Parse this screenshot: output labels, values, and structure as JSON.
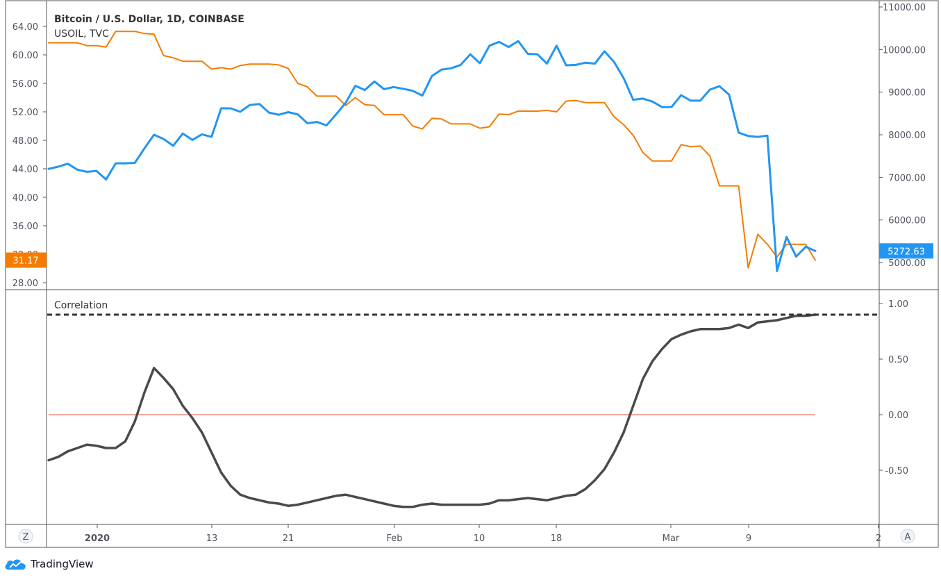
{
  "colors": {
    "btc": "#2196f3",
    "oil": "#f57c00",
    "correlation": "#4a4a4a",
    "zero_line": "#f28b82",
    "ref_line": "#333333",
    "grid_border": "#555555",
    "text": "#50535e"
  },
  "icons": {
    "brand": "tradingview-cloud-icon"
  },
  "brand": "TradingView",
  "corner_buttons": {
    "left": "Z",
    "right": "A"
  },
  "chart_data": [
    {
      "type": "line",
      "title": "Bitcoin / U.S. Dollar, 1D, COINBASE",
      "x_ticks": [
        "2020",
        "13",
        "21",
        "Feb",
        "10",
        "18",
        "Mar",
        "9",
        "2"
      ],
      "series": [
        {
          "name": "Bitcoin / U.S. Dollar, 1D, COINBASE",
          "axis": "right",
          "last_value_label": "5272.63",
          "values": [
            7200,
            7250,
            7320,
            7180,
            7130,
            7150,
            6950,
            7330,
            7330,
            7340,
            7680,
            8000,
            7900,
            7740,
            8030,
            7880,
            8010,
            7950,
            8620,
            8620,
            8540,
            8700,
            8720,
            8520,
            8470,
            8530,
            8480,
            8270,
            8300,
            8220,
            8480,
            8750,
            9150,
            9050,
            9250,
            9070,
            9120,
            9080,
            9030,
            8920,
            9380,
            9530,
            9560,
            9640,
            9890,
            9680,
            10090,
            10180,
            10060,
            10200,
            9900,
            9890,
            9670,
            10090,
            9630,
            9640,
            9690,
            9670,
            9960,
            9710,
            9330,
            8820,
            8850,
            8780,
            8650,
            8650,
            8930,
            8800,
            8800,
            9060,
            9140,
            8940,
            8050,
            7970,
            7950,
            7980,
            4800,
            5600,
            5140,
            5370,
            5272.63
          ]
        },
        {
          "name": "USOIL, TVC",
          "axis": "left",
          "last_value_label": "31.17",
          "values": [
            61.7,
            61.7,
            61.7,
            61.7,
            61.3,
            61.3,
            61.1,
            63.3,
            63.3,
            63.3,
            63.0,
            62.9,
            59.9,
            59.6,
            59.1,
            59.1,
            59.1,
            58.0,
            58.2,
            58.0,
            58.5,
            58.7,
            58.7,
            58.7,
            58.6,
            58.1,
            56.0,
            55.5,
            54.2,
            54.2,
            54.2,
            52.9,
            54.0,
            53.0,
            52.9,
            51.6,
            51.6,
            51.6,
            50.0,
            49.6,
            51.1,
            51.0,
            50.3,
            50.3,
            50.3,
            49.7,
            49.9,
            51.7,
            51.6,
            52.1,
            52.1,
            52.1,
            52.2,
            52.0,
            53.5,
            53.6,
            53.3,
            53.3,
            53.3,
            51.3,
            50.2,
            48.7,
            46.3,
            45.1,
            45.1,
            45.1,
            47.4,
            47.1,
            47.2,
            45.8,
            41.6,
            41.6,
            41.6,
            30.1,
            34.8,
            33.4,
            31.6,
            33.4,
            33.4,
            33.4,
            31.17
          ]
        }
      ],
      "y_left": {
        "ticks": [
          "28.00",
          "32.00",
          "36.00",
          "40.00",
          "44.00",
          "48.00",
          "52.00",
          "56.00",
          "60.00",
          "64.00"
        ],
        "ylim": [
          28,
          64
        ]
      },
      "y_right": {
        "ticks": [
          "5000.00",
          "6000.00",
          "7000.00",
          "8000.00",
          "9000.00",
          "10000.00",
          "11000.00"
        ],
        "ylim": [
          5000,
          11000
        ]
      }
    },
    {
      "type": "line",
      "title": "Correlation",
      "series": [
        {
          "name": "Correlation",
          "values": [
            -0.41,
            -0.38,
            -0.33,
            -0.3,
            -0.27,
            -0.28,
            -0.3,
            -0.3,
            -0.24,
            -0.06,
            0.2,
            0.42,
            0.33,
            0.23,
            0.08,
            -0.03,
            -0.16,
            -0.34,
            -0.52,
            -0.64,
            -0.72,
            -0.75,
            -0.77,
            -0.79,
            -0.8,
            -0.82,
            -0.81,
            -0.79,
            -0.77,
            -0.75,
            -0.73,
            -0.72,
            -0.74,
            -0.76,
            -0.78,
            -0.8,
            -0.82,
            -0.83,
            -0.83,
            -0.81,
            -0.8,
            -0.81,
            -0.81,
            -0.81,
            -0.81,
            -0.81,
            -0.8,
            -0.77,
            -0.77,
            -0.76,
            -0.75,
            -0.76,
            -0.77,
            -0.75,
            -0.73,
            -0.72,
            -0.67,
            -0.59,
            -0.49,
            -0.34,
            -0.16,
            0.08,
            0.32,
            0.48,
            0.59,
            0.68,
            0.72,
            0.75,
            0.77,
            0.77,
            0.77,
            0.78,
            0.81,
            0.78,
            0.83,
            0.84,
            0.85,
            0.87,
            0.89,
            0.89,
            0.9
          ]
        }
      ],
      "ref_lines": [
        0.0,
        0.9
      ],
      "y_right": {
        "ticks": [
          "-0.50",
          "0.00",
          "0.50",
          "1.00"
        ],
        "ylim": [
          -1.0,
          1.0
        ]
      }
    }
  ]
}
